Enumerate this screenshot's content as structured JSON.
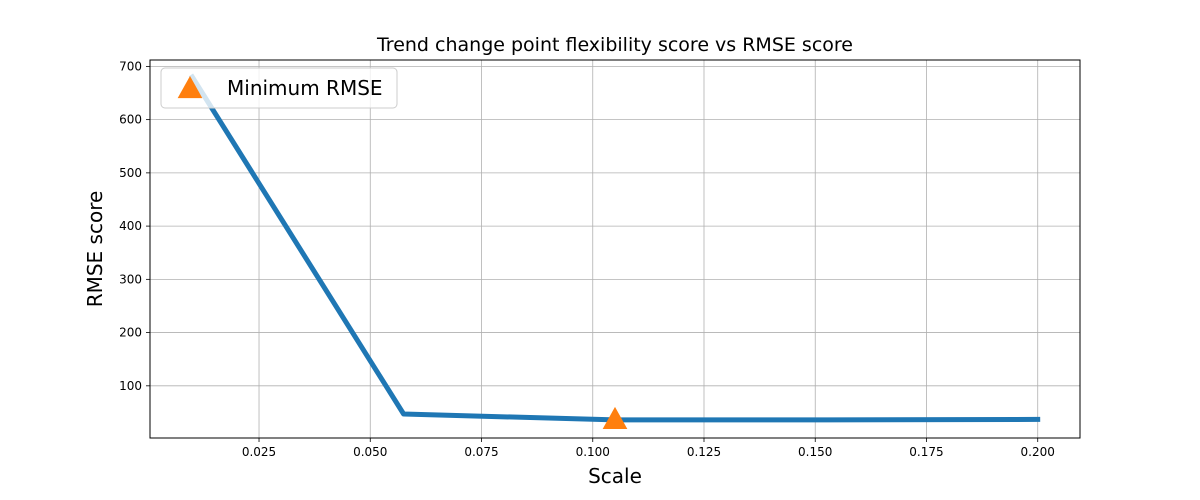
{
  "chart_data": {
    "type": "line",
    "title": "Trend change point flexibility score vs RMSE score",
    "xlabel": "Scale",
    "ylabel": "RMSE score",
    "xlim": [
      0.0005,
      0.2095
    ],
    "ylim": [
      2,
      712
    ],
    "x_ticks": [
      0.025,
      0.05,
      0.075,
      0.1,
      0.125,
      0.15,
      0.175,
      0.2
    ],
    "x_tick_labels": [
      "0.025",
      "0.050",
      "0.075",
      "0.100",
      "0.125",
      "0.150",
      "0.175",
      "0.200"
    ],
    "y_ticks": [
      100,
      200,
      300,
      400,
      500,
      600,
      700
    ],
    "y_tick_labels": [
      "100",
      "200",
      "300",
      "400",
      "500",
      "600",
      "700"
    ],
    "grid": true,
    "legend_position": "top-left",
    "series": [
      {
        "color": "#1f77b4",
        "x": [
          0.01,
          0.0575,
          0.105,
          0.1525,
          0.2
        ],
        "y": [
          680,
          47,
          36,
          36,
          37
        ]
      }
    ],
    "markers": [
      {
        "name": "Minimum RMSE",
        "shape": "triangle",
        "color": "#ff7f0e",
        "x": 0.105,
        "y": 36
      }
    ]
  }
}
